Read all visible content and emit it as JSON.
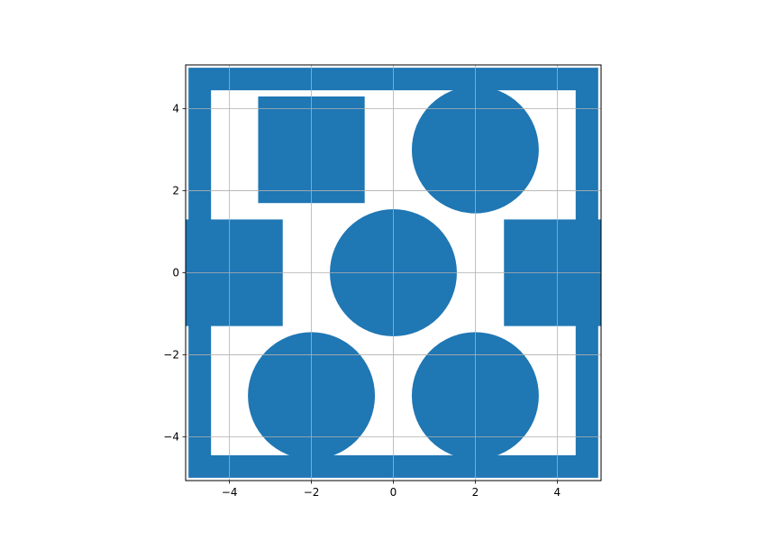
{
  "chart_data": {
    "type": "shapes",
    "title": "",
    "xlabel": "",
    "ylabel": "",
    "xlim": [
      -5.07,
      5.07
    ],
    "ylim": [
      -5.07,
      5.07
    ],
    "grid": true,
    "aspect": "equal",
    "fill_color": "#1f77b4",
    "xticks": [
      {
        "value": -4,
        "label": "−4"
      },
      {
        "value": -2,
        "label": "−2"
      },
      {
        "value": 0,
        "label": "0"
      },
      {
        "value": 2,
        "label": "2"
      },
      {
        "value": 4,
        "label": "4"
      }
    ],
    "yticks": [
      {
        "value": -4,
        "label": "−4"
      },
      {
        "value": -2,
        "label": "−2"
      },
      {
        "value": 0,
        "label": "0"
      },
      {
        "value": 2,
        "label": "2"
      },
      {
        "value": 4,
        "label": "4"
      }
    ],
    "shapes": [
      {
        "name": "outer-frame",
        "kind": "frame",
        "x0": -5,
        "x1": 5,
        "y0": -5,
        "y1": 5,
        "thickness": 0.55
      },
      {
        "name": "square-top-left",
        "kind": "rect",
        "x0": -3.3,
        "x1": -0.7,
        "y0": 1.7,
        "y1": 4.3
      },
      {
        "name": "rect-left",
        "kind": "rect",
        "x0": -5.07,
        "x1": -2.7,
        "y0": -1.3,
        "y1": 1.3
      },
      {
        "name": "rect-right",
        "kind": "rect",
        "x0": 2.7,
        "x1": 5.07,
        "y0": -1.3,
        "y1": 1.3
      },
      {
        "name": "circle-top-right",
        "kind": "circle",
        "cx": 2,
        "cy": 3,
        "r": 1.55
      },
      {
        "name": "circle-center",
        "kind": "circle",
        "cx": 0,
        "cy": 0,
        "r": 1.55
      },
      {
        "name": "circle-bottom-left",
        "kind": "circle",
        "cx": -2,
        "cy": -3,
        "r": 1.55
      },
      {
        "name": "circle-bottom-right",
        "kind": "circle",
        "cx": 2,
        "cy": -3,
        "r": 1.55
      }
    ]
  }
}
